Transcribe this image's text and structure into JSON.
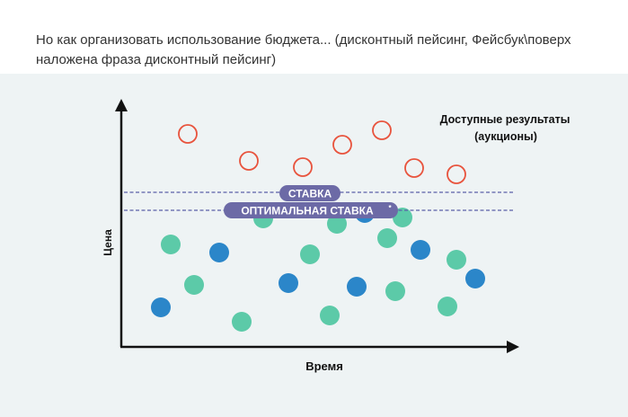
{
  "text": {
    "line1": "Но как организовать использование бюджета... (дисконтный пейсинг, Фейсбук\\поверх",
    "line2": "наложена фраза дисконтный пейсинг)"
  },
  "diagram": {
    "y_label": "Цена",
    "x_label": "Время",
    "legend_line1": "Доступные результаты",
    "legend_line2": "(аукционы)",
    "bid_label": "СТАВКА",
    "optimal_label": "ОПТИМАЛЬНАЯ СТАВКА",
    "optimal_superscript": "*"
  },
  "colors": {
    "panel_bg": "#eef3f4",
    "axis": "#111111",
    "red_circle": "#e8533d",
    "green_dot": "#5ccaa8",
    "blue_dot": "#2b86c9",
    "bid_line": "#5a5fa8",
    "pill": "#6c6aa6",
    "pill_text": "#ffffff"
  }
}
